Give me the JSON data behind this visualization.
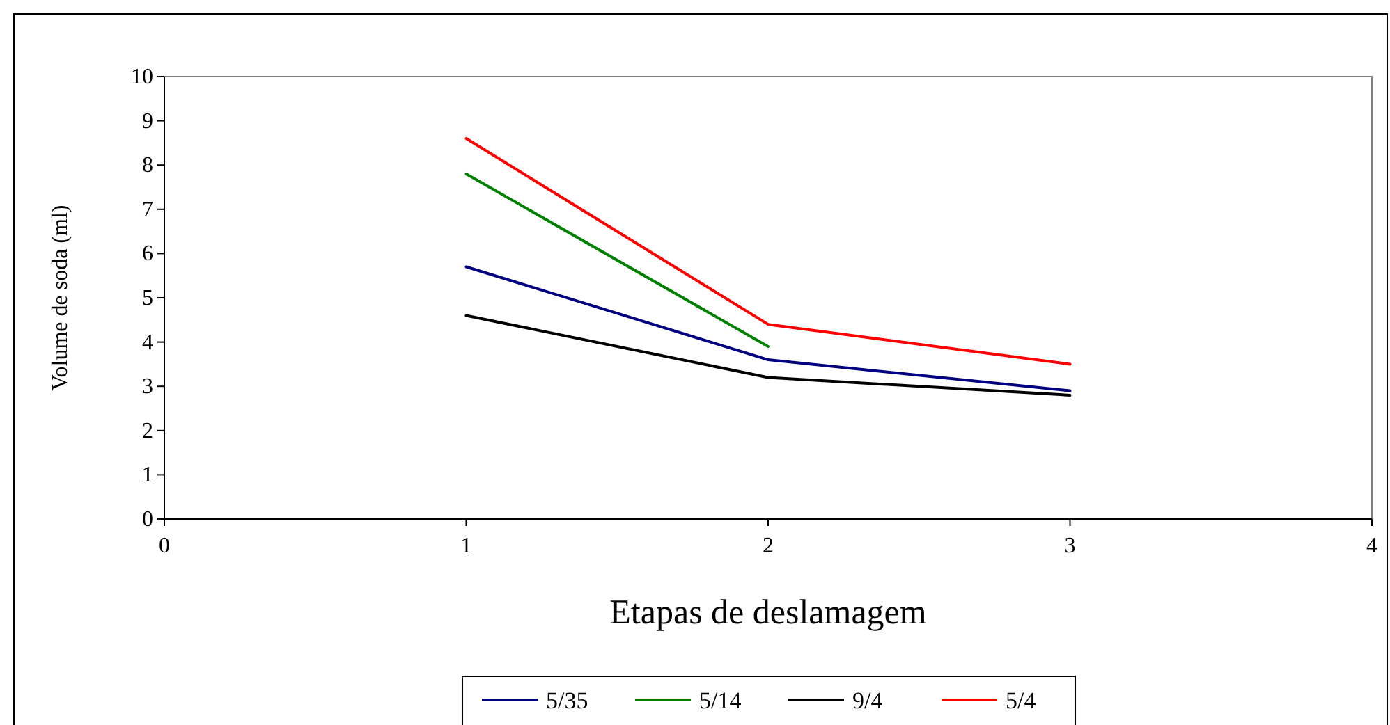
{
  "chart_data": {
    "type": "line",
    "xlabel": "Etapas de deslamagem",
    "ylabel": "Volume de soda (ml)",
    "x": [
      1,
      2,
      3
    ],
    "xlim": [
      0,
      4
    ],
    "xticks": [
      0,
      1,
      2,
      3,
      4
    ],
    "ylim": [
      0,
      10
    ],
    "yticks": [
      0,
      1,
      2,
      3,
      4,
      5,
      6,
      7,
      8,
      9,
      10
    ],
    "grid": false,
    "legend": "bottom",
    "marker": "none",
    "line_style": "solid",
    "series": [
      {
        "name": "5/35",
        "color": "#000080",
        "values": [
          5.7,
          3.6,
          2.9
        ]
      },
      {
        "name": "5/14",
        "color": "#008000",
        "values": [
          7.8,
          3.9,
          null
        ]
      },
      {
        "name": "9/4",
        "color": "#000000",
        "values": [
          4.6,
          3.2,
          2.8
        ]
      },
      {
        "name": "5/4",
        "color": "#ff0000",
        "values": [
          8.6,
          4.4,
          3.5
        ]
      }
    ]
  }
}
